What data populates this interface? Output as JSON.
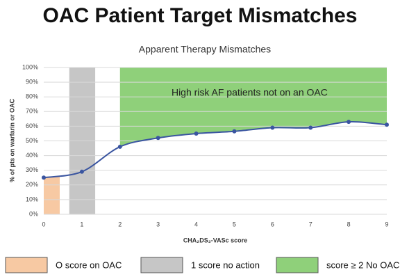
{
  "chart_data": {
    "type": "line",
    "title": "OAC Patient Target Mismatches",
    "subtitle": "Apparent Therapy Mismatches",
    "xlabel": "CHA₂DS₂-VASc score",
    "ylabel": "% of pts on warfarin or OAC",
    "annotation": "High risk AF patients not on an OAC",
    "x": [
      0,
      1,
      2,
      3,
      4,
      5,
      6,
      7,
      8,
      9
    ],
    "series": [
      {
        "color": "#3a55a0",
        "values": [
          25,
          29,
          46,
          52,
          55,
          56.5,
          59,
          59,
          63,
          61
        ]
      }
    ],
    "xlim": [
      0,
      9
    ],
    "xticks": [
      0,
      1,
      2,
      3,
      4,
      5,
      6,
      7,
      8,
      9
    ],
    "ylim": [
      0,
      100
    ],
    "yticks": [
      {
        "value": 0,
        "label": "0%"
      },
      {
        "value": 10,
        "label": "10%"
      },
      {
        "value": 20,
        "label": "20%"
      },
      {
        "value": 30,
        "label": "30%"
      },
      {
        "value": 40,
        "label": "40%"
      },
      {
        "value": 50,
        "label": "50%"
      },
      {
        "value": 60,
        "label": "60%"
      },
      {
        "value": 70,
        "label": "70%"
      },
      {
        "value": 80,
        "label": "80%"
      },
      {
        "value": 90,
        "label": "90%"
      },
      {
        "value": 100,
        "label": "100%"
      }
    ],
    "grid": true,
    "regions": [
      {
        "name": "O score on OAC",
        "color": "#f7c9a3",
        "x": [
          0,
          0.42
        ],
        "fill": "below"
      },
      {
        "name": "1 score no action",
        "color": "#c6c6c6",
        "x": [
          0.67,
          1.35
        ],
        "fill": "full"
      },
      {
        "name": "score ≥ 2 No OAC",
        "color": "#8fd07a",
        "x": [
          2,
          9
        ],
        "fill": "above"
      }
    ]
  }
}
